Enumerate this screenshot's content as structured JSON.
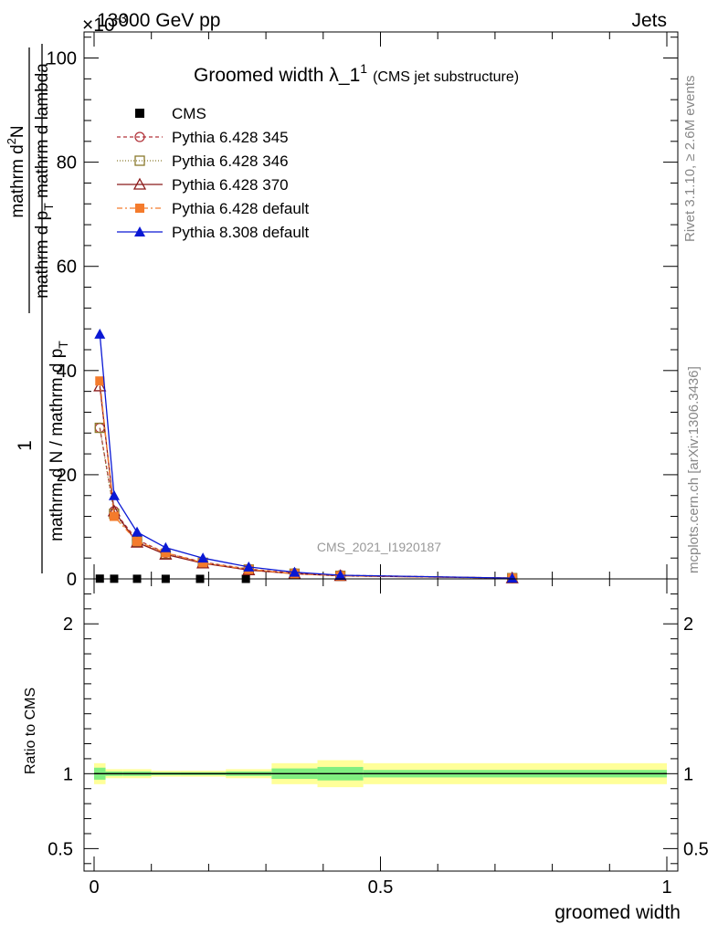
{
  "header": {
    "energy": "13000 GeV pp",
    "process": "Jets",
    "multiplier": "×10",
    "multiplier_exp": "-3"
  },
  "plot_title": {
    "main": "Groomed width",
    "lambda": "λ_1",
    "sup": "1",
    "sub": "(CMS jet substructure)"
  },
  "side_text": {
    "rivet": "Rivet 3.1.10, ≥ 2.6M events",
    "mcplots": "mcplots.cern.ch [arXiv:1306.3436]"
  },
  "watermark": "CMS_2021_I1920187",
  "ylabel_main": {
    "numerator": "1",
    "denominator": "mathrm d N / mathrm d p",
    "den_sub": "T",
    "num_top": "mathrm d",
    "num_top_sup": "2",
    "num_top_end": "N",
    "num_bottom": "mathrm d p",
    "num_bottom_sub": "T",
    "num_bottom_end": " mathrm d lambda"
  },
  "ylabel_ratio": "Ratio to CMS",
  "xlabel": "groomed width",
  "legend": [
    {
      "name": "CMS",
      "color": "#000000",
      "marker": "square-filled",
      "dash": ""
    },
    {
      "name": "Pythia 6.428 345",
      "color": "#b2343b",
      "marker": "circle-open",
      "dash": "4,3"
    },
    {
      "name": "Pythia 6.428 346",
      "color": "#8a7a2c",
      "marker": "square-open",
      "dash": "1,2"
    },
    {
      "name": "Pythia 6.428 370",
      "color": "#8b1a1a",
      "marker": "triangle-open",
      "dash": ""
    },
    {
      "name": "Pythia 6.428 default",
      "color": "#f47b2c",
      "marker": "square-filled",
      "dash": "6,3,2,3"
    },
    {
      "name": "Pythia 8.308 default",
      "color": "#0a18d4",
      "marker": "triangle-filled",
      "dash": ""
    }
  ],
  "colors": {
    "band_outer": "#ffff99",
    "band_inner": "#80ee80"
  },
  "chart_data": {
    "type": "line",
    "main": {
      "xlim": [
        0,
        1
      ],
      "ylim": [
        0,
        105
      ],
      "yticks": [
        0,
        20,
        40,
        60,
        80,
        100
      ],
      "ytick_labels": [
        "0",
        "20",
        "40",
        "60",
        "80",
        "100"
      ],
      "series": [
        {
          "name": "CMS",
          "x": [
            0.01,
            0.035,
            0.075,
            0.125,
            0.185,
            0.265
          ],
          "y": [
            0.05,
            0.03,
            0.02,
            0.012,
            0.006,
            0.003
          ]
        },
        {
          "name": "Pythia 6.428 345",
          "x": [
            0.01,
            0.035,
            0.075,
            0.125,
            0.19,
            0.27,
            0.35,
            0.43,
            0.73
          ],
          "y": [
            29,
            13,
            7.5,
            5,
            3.2,
            1.9,
            1.1,
            0.7,
            0.15
          ]
        },
        {
          "name": "Pythia 6.428 346",
          "x": [
            0.01,
            0.035,
            0.075,
            0.125,
            0.19,
            0.27,
            0.35,
            0.43,
            0.73
          ],
          "y": [
            29,
            12.5,
            7.2,
            4.8,
            3.1,
            1.8,
            1.0,
            0.6,
            0.15
          ]
        },
        {
          "name": "Pythia 6.428 370",
          "x": [
            0.01,
            0.035,
            0.075,
            0.125,
            0.19,
            0.27,
            0.35,
            0.43,
            0.73
          ],
          "y": [
            37,
            13,
            7,
            4.7,
            3.0,
            1.7,
            1.0,
            0.6,
            0.15
          ]
        },
        {
          "name": "Pythia 6.428 default",
          "x": [
            0.01,
            0.035,
            0.075,
            0.125,
            0.19,
            0.27,
            0.35,
            0.43,
            0.73
          ],
          "y": [
            38,
            12,
            7.2,
            5,
            3.1,
            1.8,
            1.0,
            0.6,
            0.15
          ]
        },
        {
          "name": "Pythia 8.308 default",
          "x": [
            0.01,
            0.035,
            0.075,
            0.125,
            0.19,
            0.27,
            0.35,
            0.43,
            0.73
          ],
          "y": [
            47,
            16,
            9,
            6,
            4,
            2.3,
            1.3,
            0.7,
            0.15
          ]
        }
      ]
    },
    "ratio": {
      "ylim": [
        0.35,
        2.3
      ],
      "yticks": [
        0.5,
        1,
        2
      ],
      "ytick_labels": [
        "0.5",
        "1",
        "2"
      ],
      "xticks": [
        0,
        0.5,
        1
      ],
      "xtick_labels": [
        "0",
        "0.5",
        "1"
      ],
      "bins": [
        0,
        0.02,
        0.05,
        0.1,
        0.15,
        0.23,
        0.31,
        0.39,
        0.47,
        1.0
      ],
      "outer": [
        0.07,
        0.03,
        0.03,
        0.02,
        0.02,
        0.03,
        0.07,
        0.09,
        0.07
      ],
      "inner": [
        0.04,
        0.015,
        0.015,
        0.01,
        0.01,
        0.015,
        0.035,
        0.045,
        0.025
      ]
    }
  }
}
